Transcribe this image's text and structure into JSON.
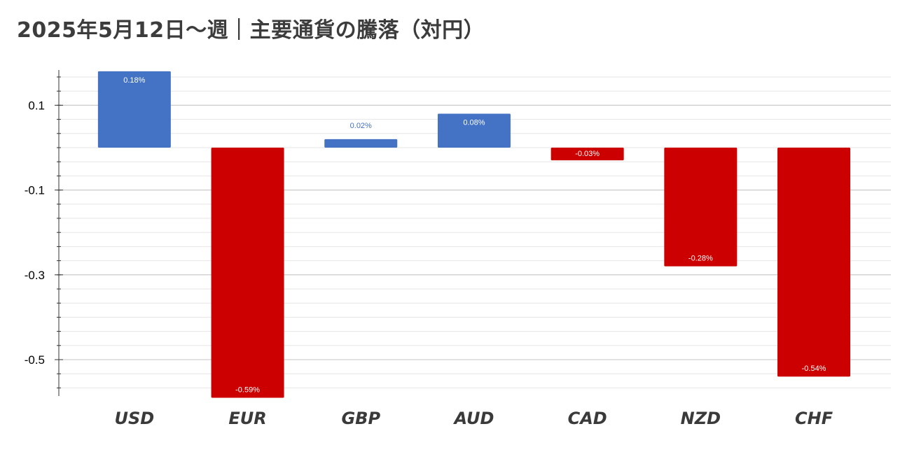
{
  "title": "2025年5月12日〜週｜主要通貨の騰落（対円）",
  "chart_data": {
    "type": "bar",
    "categories": [
      "USD",
      "EUR",
      "GBP",
      "AUD",
      "CAD",
      "NZD",
      "CHF"
    ],
    "values": [
      0.18,
      -0.59,
      0.02,
      0.08,
      -0.03,
      -0.28,
      -0.54
    ],
    "data_labels": [
      "0.18%",
      "-0.59%",
      "0.02%",
      "0.08%",
      "-0.03%",
      "-0.28%",
      "-0.54%"
    ],
    "y_ticks": [
      0.1,
      -0.1,
      -0.3,
      -0.5
    ],
    "y_tick_labels": [
      "0.1",
      "-0.1",
      "-0.3",
      "-0.5"
    ],
    "ylim": [
      -0.585,
      0.18
    ],
    "grid": true,
    "colors": {
      "positive": "#4472c4",
      "negative": "#cc0000"
    }
  }
}
